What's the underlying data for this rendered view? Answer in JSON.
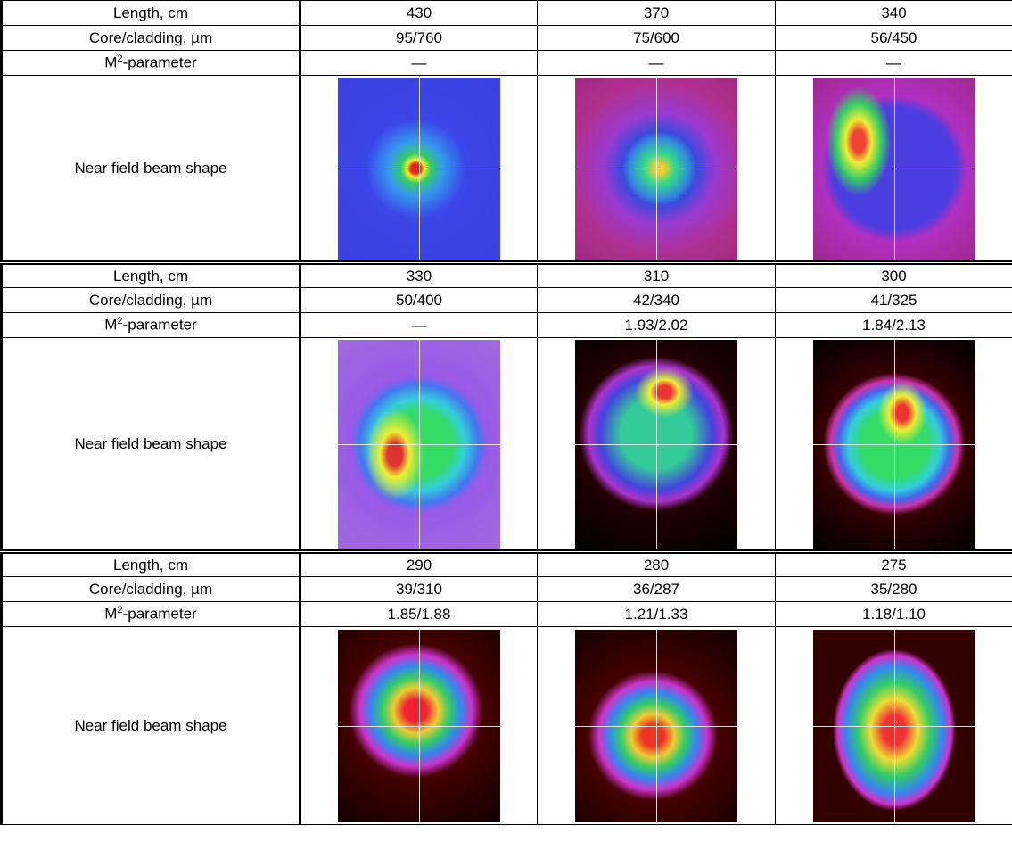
{
  "blocks": [
    {
      "rows": [
        {
          "label": "Length, cm",
          "cells": [
            "430",
            "370",
            "340"
          ]
        },
        {
          "label": "Core/cladding, µm",
          "cells": [
            "95/760",
            "75/600",
            "56/450"
          ]
        },
        {
          "label": {
            "base": "M",
            "sup": "2",
            "rest": "-parameter"
          },
          "cells": [
            "—",
            "—",
            "—"
          ]
        },
        {
          "label": "Near field beam shape"
        }
      ]
    },
    {
      "rows": [
        {
          "label": "Length, cm",
          "cells": [
            "330",
            "310",
            "300"
          ]
        },
        {
          "label": "Core/cladding, µm",
          "cells": [
            "50/400",
            "42/340",
            "41/325"
          ]
        },
        {
          "label": {
            "base": "M",
            "sup": "2",
            "rest": "-parameter"
          },
          "cells": [
            "—",
            "1.93/2.02",
            "1.84/2.13"
          ]
        },
        {
          "label": "Near field beam shape"
        }
      ]
    },
    {
      "rows": [
        {
          "label": "Length, cm",
          "cells": [
            "290",
            "280",
            "275"
          ]
        },
        {
          "label": "Core/cladding, µm",
          "cells": [
            "39/310",
            "36/287",
            "35/280"
          ]
        },
        {
          "label": {
            "base": "M",
            "sup": "2",
            "rest": "-parameter"
          },
          "cells": [
            "1.85/1.88",
            "1.21/1.33",
            "1.18/1.10"
          ]
        },
        {
          "label": "Near field beam shape"
        }
      ]
    }
  ]
}
